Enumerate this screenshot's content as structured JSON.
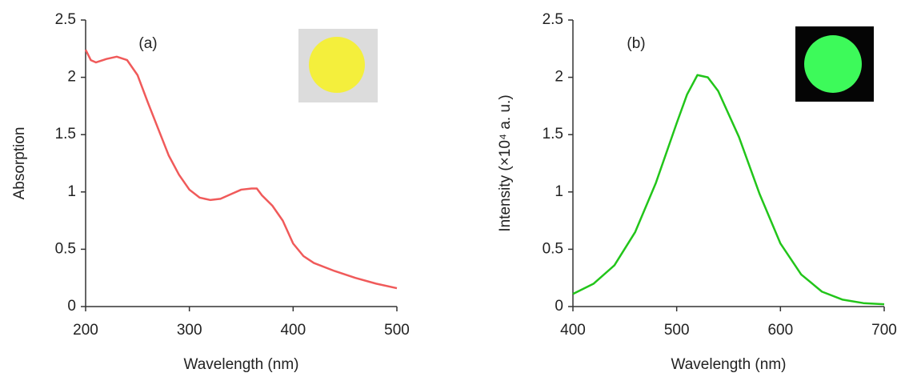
{
  "chart_data": [
    {
      "type": "line",
      "annotation": "(a)",
      "xlabel": "Wavelength (nm)",
      "ylabel": "Absorption",
      "x": [
        200,
        205,
        210,
        220,
        230,
        240,
        250,
        260,
        270,
        280,
        290,
        300,
        310,
        320,
        330,
        340,
        350,
        360,
        365,
        370,
        380,
        390,
        400,
        410,
        420,
        440,
        460,
        480,
        500
      ],
      "series": [
        {
          "color": "#f05a5a",
          "values": [
            2.24,
            2.15,
            2.13,
            2.16,
            2.18,
            2.15,
            2.02,
            1.78,
            1.55,
            1.32,
            1.15,
            1.02,
            0.95,
            0.93,
            0.94,
            0.98,
            1.02,
            1.03,
            1.03,
            0.97,
            0.88,
            0.75,
            0.55,
            0.44,
            0.38,
            0.31,
            0.25,
            0.2,
            0.16
          ]
        }
      ],
      "xlim": [
        200,
        500
      ],
      "xticks": [
        200,
        300,
        400,
        500
      ],
      "ylim": [
        0,
        2.5
      ],
      "yticks": [
        0,
        0.5,
        1,
        1.5,
        2,
        2.5
      ]
    },
    {
      "type": "line",
      "annotation": "(b)",
      "xlabel": "Wavelength (nm)",
      "ylabel": "Intensity (×10⁴ a. u.)",
      "x": [
        400,
        420,
        440,
        460,
        480,
        500,
        510,
        520,
        530,
        540,
        560,
        580,
        600,
        620,
        640,
        660,
        680,
        700
      ],
      "series": [
        {
          "color": "#22c51a",
          "values": [
            0.11,
            0.2,
            0.36,
            0.65,
            1.08,
            1.6,
            1.85,
            2.02,
            2.0,
            1.88,
            1.48,
            0.98,
            0.55,
            0.28,
            0.13,
            0.06,
            0.03,
            0.02
          ]
        }
      ],
      "xlim": [
        400,
        700
      ],
      "xticks": [
        400,
        500,
        600,
        700
      ],
      "ylim": [
        0,
        2.5
      ],
      "yticks": [
        0,
        0.5,
        1,
        1.5,
        2,
        2.5
      ]
    }
  ]
}
